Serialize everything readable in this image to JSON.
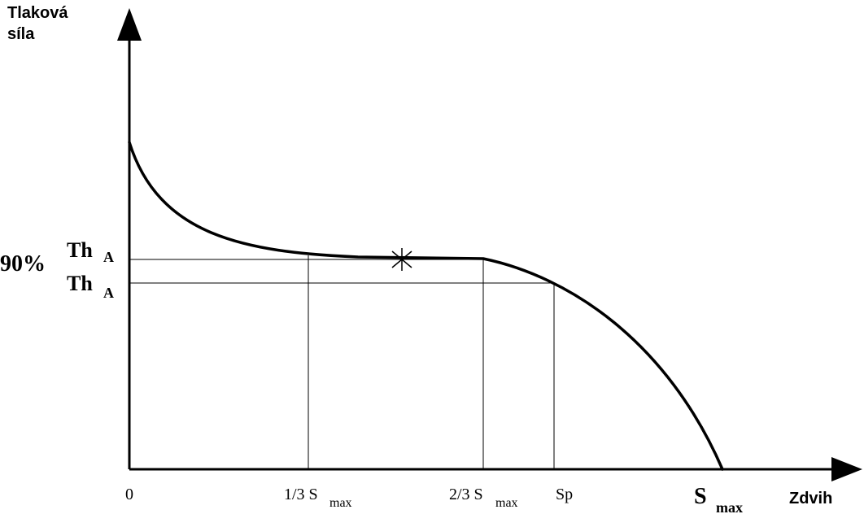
{
  "y_axis_label": {
    "line1": "Tlaková",
    "line2": "síla"
  },
  "x_axis_label": "Zdvih",
  "y_labels": {
    "percent": "90%",
    "th_upper": "Th",
    "th_upper_sub": "A",
    "th_lower": "Th",
    "th_lower_sub": "A"
  },
  "x_labels": {
    "origin": "0",
    "one_third": "1/3 S",
    "one_third_sub": "max",
    "two_third": "2/3 S",
    "two_third_sub": "max",
    "sp": "Sp",
    "smax": "S",
    "smax_sub": "max"
  },
  "marker_symbol": "*"
}
